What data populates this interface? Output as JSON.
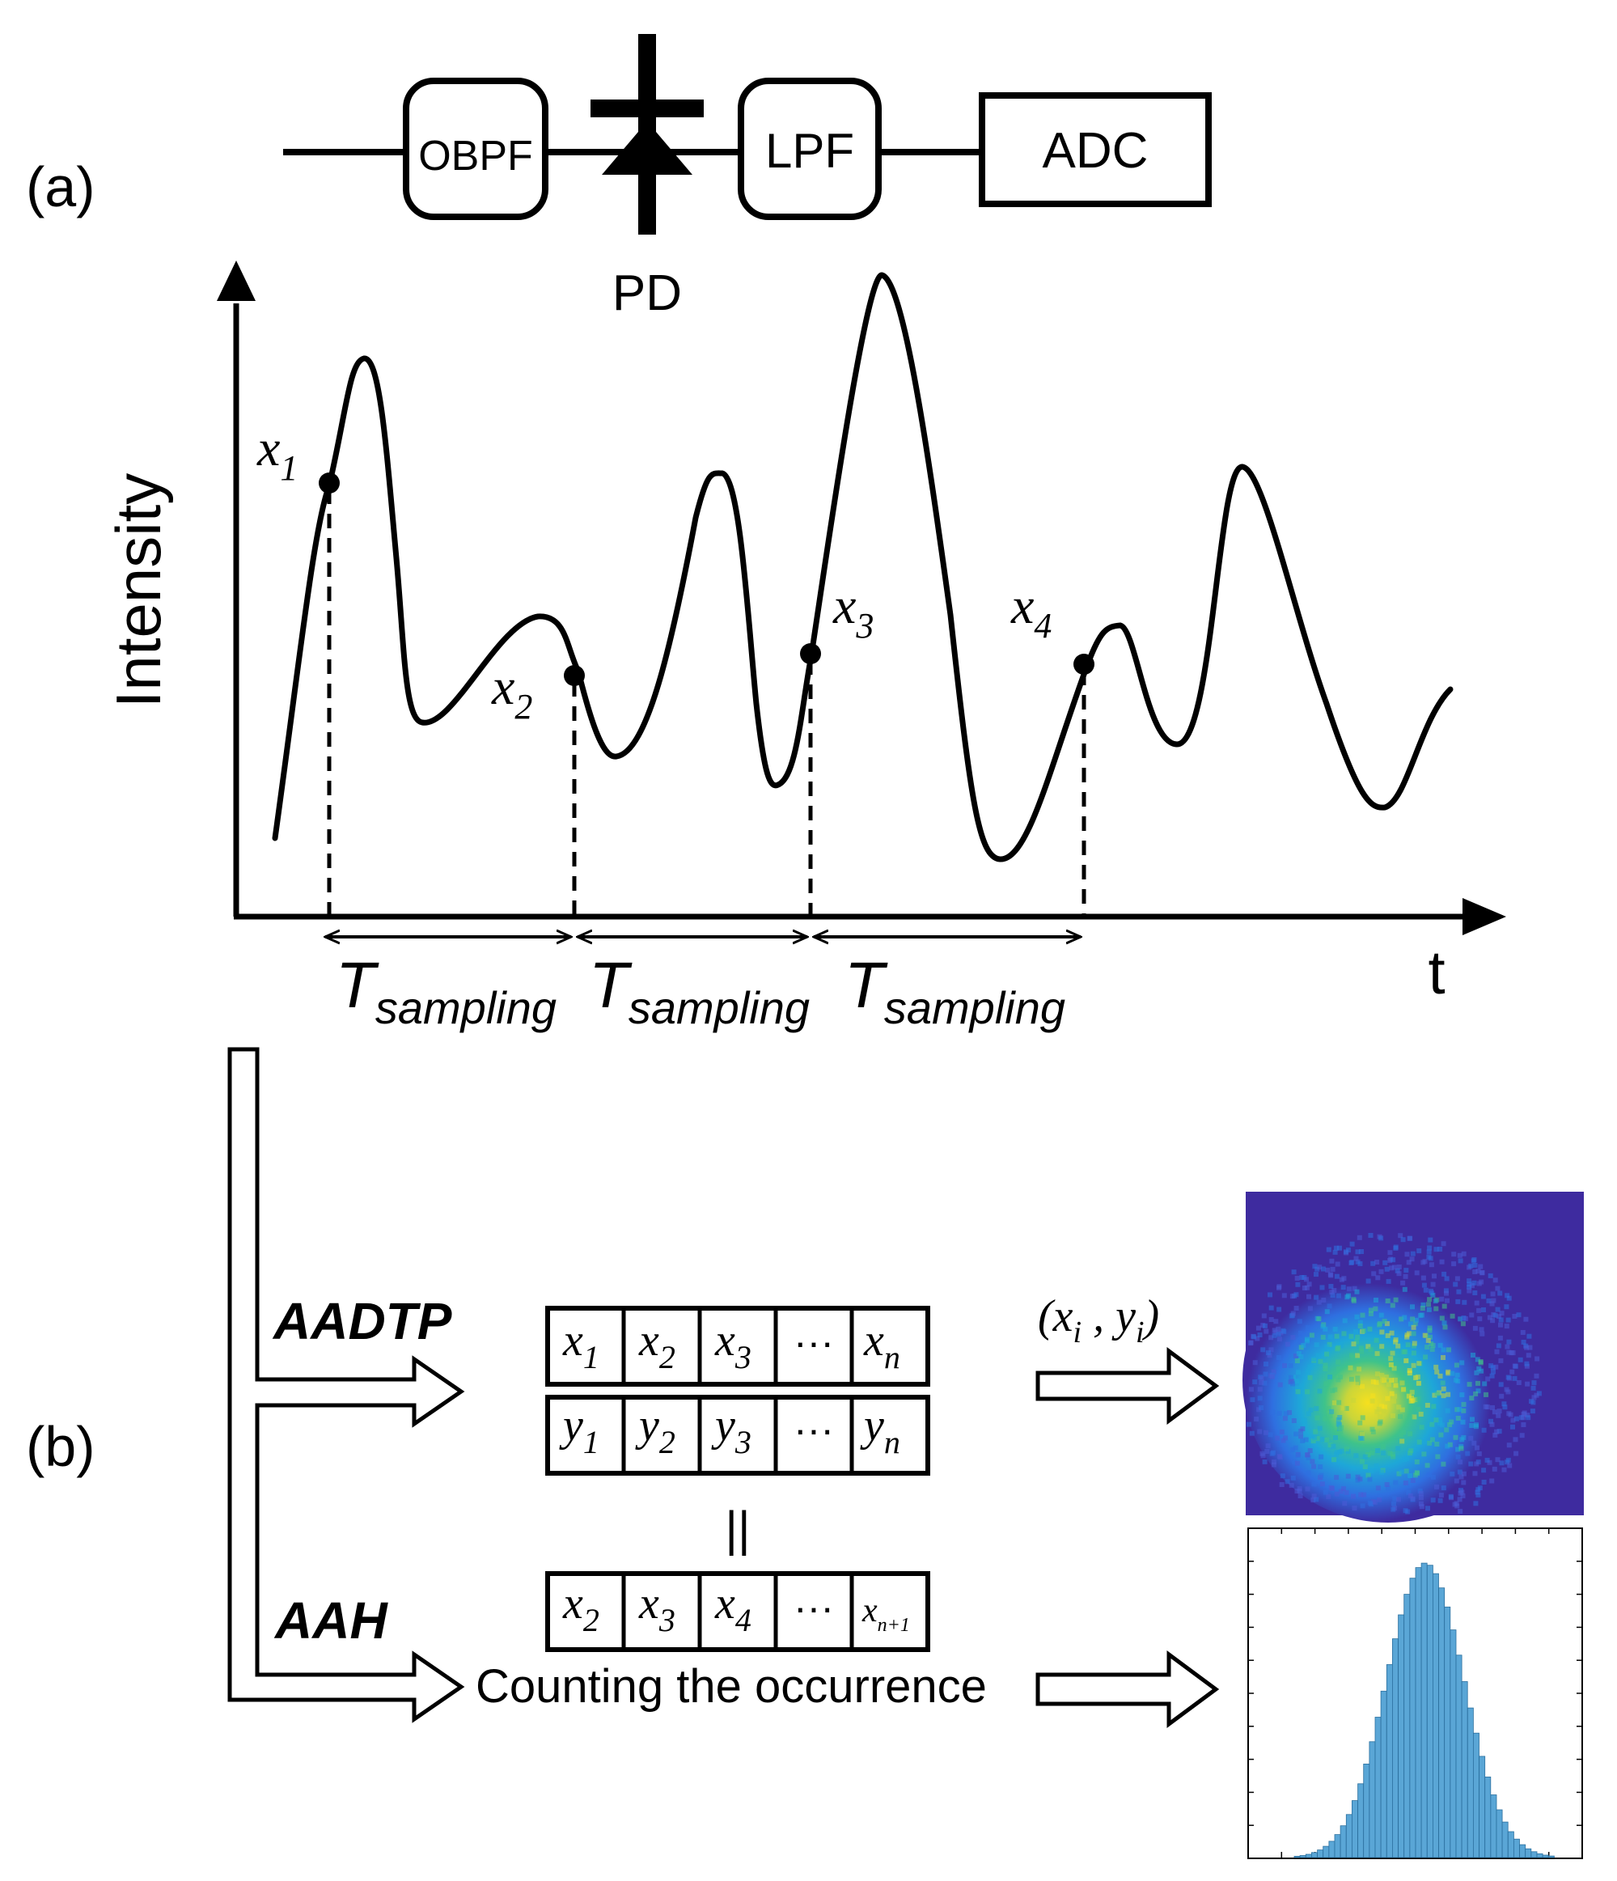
{
  "panel_labels": {
    "a": "(a)",
    "b": "(b)"
  },
  "block_chain": {
    "obpf": "OBPF",
    "pd": "PD",
    "lpf": "LPF",
    "adc": "ADC"
  },
  "waveform": {
    "y_axis_label": "Intensity",
    "x_axis_label": "t",
    "samples": [
      {
        "base": "x",
        "sub": "1"
      },
      {
        "base": "x",
        "sub": "2"
      },
      {
        "base": "x",
        "sub": "3"
      },
      {
        "base": "x",
        "sub": "4"
      }
    ],
    "interval": {
      "main": "T",
      "sub": "sampling"
    }
  },
  "methods": {
    "aadtp": "AADTP",
    "aah": "AAH",
    "counting": "Counting the occurrence",
    "pair_label": {
      "open": "(",
      "x": "x",
      "xi": "i",
      "comma": " , ",
      "y": "y",
      "yi": "i",
      "close": ")"
    },
    "equals": "||",
    "ellipsis": "···",
    "row_x": [
      {
        "base": "x",
        "sub": "1"
      },
      {
        "base": "x",
        "sub": "2"
      },
      {
        "base": "x",
        "sub": "3"
      },
      {
        "base": "",
        "sub": ""
      },
      {
        "base": "x",
        "sub": "n"
      }
    ],
    "row_y": [
      {
        "base": "y",
        "sub": "1"
      },
      {
        "base": "y",
        "sub": "2"
      },
      {
        "base": "y",
        "sub": "3"
      },
      {
        "base": "",
        "sub": ""
      },
      {
        "base": "y",
        "sub": "n"
      }
    ],
    "row_shift": [
      {
        "base": "x",
        "sub": "2"
      },
      {
        "base": "x",
        "sub": "3"
      },
      {
        "base": "x",
        "sub": "4"
      },
      {
        "base": "",
        "sub": ""
      },
      {
        "base": "x",
        "sub": "n+1"
      }
    ]
  },
  "colors": {
    "line": "#000000",
    "heatmap_bg": "#3e2b9f",
    "histogram_bar": "#5aa6d6",
    "histogram_edge": "#2a6f9e"
  }
}
